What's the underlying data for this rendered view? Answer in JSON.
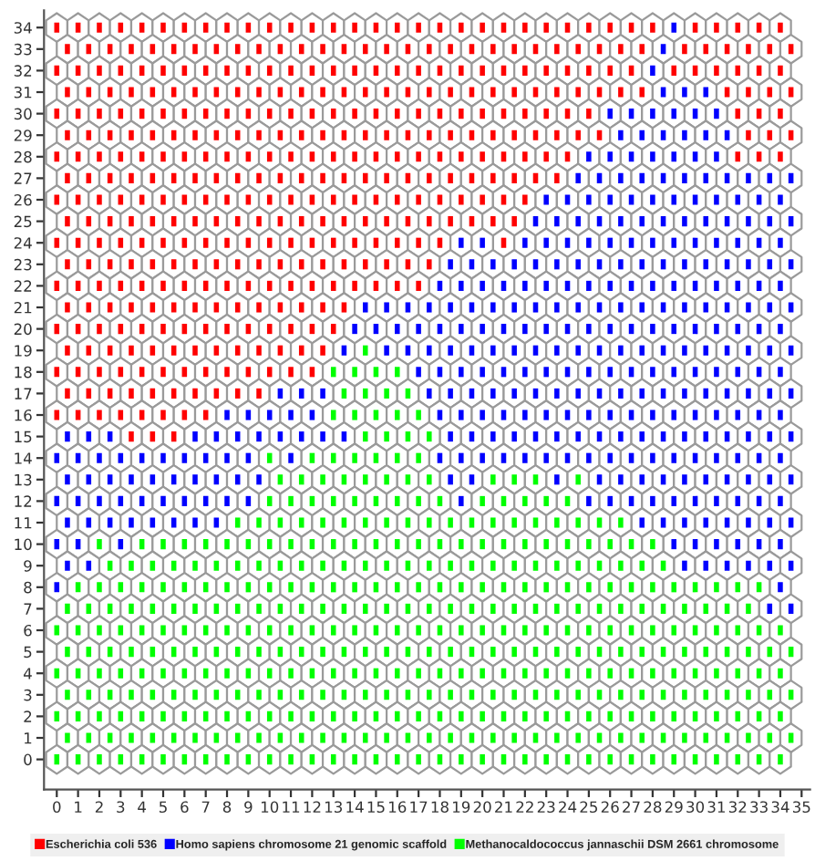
{
  "chart_data": {
    "type": "scatter",
    "marker": "square",
    "legend": "bottom",
    "xlim": [
      -0.6,
      35.4
    ],
    "ylim": [
      -1.4,
      34.8
    ],
    "xticks": [
      0,
      1,
      2,
      3,
      4,
      5,
      6,
      7,
      8,
      9,
      10,
      11,
      12,
      13,
      14,
      15,
      16,
      17,
      18,
      19,
      20,
      21,
      22,
      23,
      24,
      25,
      26,
      27,
      28,
      29,
      30,
      31,
      32,
      33,
      34,
      35
    ],
    "yticks": [
      0,
      1,
      2,
      3,
      4,
      5,
      6,
      7,
      8,
      9,
      10,
      11,
      12,
      13,
      14,
      15,
      16,
      17,
      18,
      19,
      20,
      21,
      22,
      23,
      24,
      25,
      26,
      27,
      28,
      29,
      30,
      31,
      32,
      33,
      34
    ],
    "series": [
      {
        "name": "Escherichia coli 536",
        "color": "#ff0000",
        "x": [
          0,
          1,
          2,
          3,
          4,
          5,
          6,
          7,
          8,
          9,
          10,
          11,
          12,
          13,
          14,
          15,
          16,
          17,
          18,
          19,
          20,
          21,
          22,
          23,
          24,
          25,
          26,
          27,
          28,
          30,
          31,
          32,
          33,
          34,
          0.5,
          1.5,
          2.5,
          3.5,
          4.5,
          5.5,
          6.5,
          7.5,
          8.5,
          9.5,
          10.5,
          11.5,
          12.5,
          13.5,
          14.5,
          15.5,
          16.5,
          17.5,
          18.5,
          19.5,
          20.5,
          21.5,
          22.5,
          23.5,
          24.5,
          25.5,
          26.5,
          27.5,
          29.5,
          30.5,
          31.5,
          32.5,
          33.5,
          34.5,
          0,
          1,
          2,
          3,
          4,
          5,
          6,
          7,
          8,
          9,
          10,
          11,
          12,
          13,
          14,
          15,
          16,
          17,
          18,
          19,
          20,
          21,
          22,
          23,
          24,
          25,
          26,
          27,
          29,
          30,
          31,
          32,
          33,
          34,
          0.5,
          1.5,
          2.5,
          3.5,
          4.5,
          5.5,
          6.5,
          7.5,
          8.5,
          9.5,
          10.5,
          11.5,
          12.5,
          13.5,
          14.5,
          15.5,
          16.5,
          17.5,
          18.5,
          19.5,
          20.5,
          21.5,
          22.5,
          23.5,
          24.5,
          25.5,
          26.5,
          27.5,
          31.5,
          32.5,
          33.5,
          34.5,
          0,
          1,
          2,
          3,
          4,
          5,
          6,
          7,
          8,
          9,
          10,
          11,
          12,
          13,
          14,
          15,
          16,
          17,
          18,
          19,
          20,
          21,
          22,
          23,
          24,
          25,
          32,
          33,
          34,
          0.5,
          1.5,
          2.5,
          3.5,
          4.5,
          5.5,
          6.5,
          7.5,
          8.5,
          9.5,
          10.5,
          11.5,
          12.5,
          13.5,
          14.5,
          15.5,
          16.5,
          17.5,
          18.5,
          19.5,
          20.5,
          21.5,
          22.5,
          23.5,
          24.5,
          25.5,
          32.5,
          33.5,
          34.5,
          0,
          1,
          2,
          3,
          4,
          5,
          6,
          7,
          8,
          9,
          10,
          11,
          12,
          13,
          14,
          15,
          16,
          17,
          18,
          19,
          20,
          21,
          22,
          23,
          24,
          32,
          33,
          34,
          0.5,
          1.5,
          2.5,
          3.5,
          4.5,
          5.5,
          6.5,
          7.5,
          8.5,
          9.5,
          10.5,
          11.5,
          12.5,
          13.5,
          14.5,
          15.5,
          16.5,
          17.5,
          18.5,
          19.5,
          20.5,
          21.5,
          22.5,
          23.5,
          0,
          1,
          2,
          3,
          4,
          5,
          6,
          7,
          8,
          9,
          10,
          11,
          12,
          13,
          14,
          15,
          16,
          17,
          18,
          19,
          20,
          21,
          22,
          0.5,
          1.5,
          2.5,
          3.5,
          4.5,
          5.5,
          6.5,
          7.5,
          8.5,
          9.5,
          10.5,
          11.5,
          12.5,
          13.5,
          14.5,
          15.5,
          16.5,
          17.5,
          18.5,
          19.5,
          20.5,
          21.5,
          0,
          1,
          2,
          3,
          4,
          5,
          6,
          7,
          8,
          9,
          10,
          11,
          12,
          13,
          14,
          15,
          16,
          17,
          18,
          21,
          0.5,
          1.5,
          2.5,
          3.5,
          4.5,
          5.5,
          6.5,
          7.5,
          8.5,
          9.5,
          10.5,
          11.5,
          12.5,
          13.5,
          14.5,
          15.5,
          16.5,
          17.5,
          0,
          1,
          2,
          3,
          4,
          5,
          6,
          7,
          8,
          9,
          10,
          11,
          12,
          13,
          14,
          15,
          16,
          17,
          0.5,
          1.5,
          2.5,
          3.5,
          4.5,
          5.5,
          6.5,
          7.5,
          8.5,
          9.5,
          10.5,
          11.5,
          12.5,
          13.5,
          0,
          1,
          2,
          3,
          4,
          5,
          6,
          7,
          8,
          9,
          10,
          11,
          12,
          13,
          0.5,
          1.5,
          2.5,
          3.5,
          4.5,
          5.5,
          6.5,
          7.5,
          8.5,
          9.5,
          10.5,
          11.5,
          12.5,
          0,
          1,
          2,
          3,
          4,
          5,
          6,
          7,
          8,
          9,
          10,
          11,
          12,
          0.5,
          1.5,
          2.5,
          3.5,
          4.5,
          5.5,
          6.5,
          7.5,
          8.5,
          9.5,
          0,
          1,
          2,
          3,
          4,
          5,
          6,
          7,
          3.5,
          4.5,
          5.5
        ],
        "values": [
          34,
          34,
          34,
          34,
          34,
          34,
          34,
          34,
          34,
          34,
          34,
          34,
          34,
          34,
          34,
          34,
          34,
          34,
          34,
          34,
          34,
          34,
          34,
          34,
          34,
          34,
          34,
          34,
          34,
          34,
          34,
          34,
          34,
          34,
          33,
          33,
          33,
          33,
          33,
          33,
          33,
          33,
          33,
          33,
          33,
          33,
          33,
          33,
          33,
          33,
          33,
          33,
          33,
          33,
          33,
          33,
          33,
          33,
          33,
          33,
          33,
          33,
          33,
          33,
          33,
          33,
          33,
          33,
          32,
          32,
          32,
          32,
          32,
          32,
          32,
          32,
          32,
          32,
          32,
          32,
          32,
          32,
          32,
          32,
          32,
          32,
          32,
          32,
          32,
          32,
          32,
          32,
          32,
          32,
          32,
          32,
          32,
          32,
          32,
          32,
          32,
          32,
          31,
          31,
          31,
          31,
          31,
          31,
          31,
          31,
          31,
          31,
          31,
          31,
          31,
          31,
          31,
          31,
          31,
          31,
          31,
          31,
          31,
          31,
          31,
          31,
          31,
          31,
          31,
          31,
          31,
          31,
          31,
          31,
          30,
          30,
          30,
          30,
          30,
          30,
          30,
          30,
          30,
          30,
          30,
          30,
          30,
          30,
          30,
          30,
          30,
          30,
          30,
          30,
          30,
          30,
          30,
          30,
          30,
          30,
          30,
          30,
          30,
          29,
          29,
          29,
          29,
          29,
          29,
          29,
          29,
          29,
          29,
          29,
          29,
          29,
          29,
          29,
          29,
          29,
          29,
          29,
          29,
          29,
          29,
          29,
          29,
          29,
          29,
          29,
          29,
          29,
          28,
          28,
          28,
          28,
          28,
          28,
          28,
          28,
          28,
          28,
          28,
          28,
          28,
          28,
          28,
          28,
          28,
          28,
          28,
          28,
          28,
          28,
          28,
          28,
          28,
          28,
          28,
          28,
          27,
          27,
          27,
          27,
          27,
          27,
          27,
          27,
          27,
          27,
          27,
          27,
          27,
          27,
          27,
          27,
          27,
          27,
          27,
          27,
          27,
          27,
          27,
          27,
          26,
          26,
          26,
          26,
          26,
          26,
          26,
          26,
          26,
          26,
          26,
          26,
          26,
          26,
          26,
          26,
          26,
          26,
          26,
          26,
          26,
          26,
          26,
          25,
          25,
          25,
          25,
          25,
          25,
          25,
          25,
          25,
          25,
          25,
          25,
          25,
          25,
          25,
          25,
          25,
          25,
          25,
          25,
          25,
          25,
          24,
          24,
          24,
          24,
          24,
          24,
          24,
          24,
          24,
          24,
          24,
          24,
          24,
          24,
          24,
          24,
          24,
          24,
          24,
          24,
          23,
          23,
          23,
          23,
          23,
          23,
          23,
          23,
          23,
          23,
          23,
          23,
          23,
          23,
          23,
          23,
          23,
          23,
          22,
          22,
          22,
          22,
          22,
          22,
          22,
          22,
          22,
          22,
          22,
          22,
          22,
          22,
          22,
          22,
          22,
          22,
          21,
          21,
          21,
          21,
          21,
          21,
          21,
          21,
          21,
          21,
          21,
          21,
          21,
          21,
          20,
          20,
          20,
          20,
          20,
          20,
          20,
          20,
          20,
          20,
          20,
          20,
          20,
          20,
          19,
          19,
          19,
          19,
          19,
          19,
          19,
          19,
          19,
          19,
          19,
          19,
          19,
          18,
          18,
          18,
          18,
          18,
          18,
          18,
          18,
          18,
          18,
          18,
          18,
          18,
          17,
          17,
          17,
          17,
          17,
          17,
          17,
          17,
          17,
          17,
          16,
          16,
          16,
          16,
          16,
          16,
          16,
          16,
          15,
          15,
          15
        ]
      },
      {
        "name": "Homo sapiens chromosome 21 genomic scaffold",
        "color": "#0000ff",
        "x": [
          29,
          28.5,
          28,
          28.5,
          29.5,
          30.5,
          26,
          27,
          28,
          29,
          30,
          31,
          26.5,
          27.5,
          28.5,
          29.5,
          30.5,
          31.5,
          25,
          26,
          27,
          28,
          29,
          30,
          31,
          24.5,
          25.5,
          26.5,
          27.5,
          28.5,
          29.5,
          30.5,
          31.5,
          32.5,
          33.5,
          34.5,
          23,
          24,
          25,
          26,
          27,
          28,
          29,
          30,
          31,
          32,
          33,
          34,
          22.5,
          23.5,
          24.5,
          25.5,
          26.5,
          27.5,
          28.5,
          29.5,
          30.5,
          31.5,
          32.5,
          33.5,
          34.5,
          19,
          20,
          22,
          23,
          24,
          25,
          26,
          27,
          28,
          29,
          30,
          31,
          32,
          33,
          34,
          18.5,
          19.5,
          20.5,
          21.5,
          22.5,
          23.5,
          24.5,
          25.5,
          26.5,
          27.5,
          28.5,
          29.5,
          30.5,
          31.5,
          32.5,
          33.5,
          34.5,
          18,
          19,
          20,
          21,
          22,
          23,
          24,
          25,
          26,
          27,
          28,
          29,
          30,
          31,
          32,
          33,
          34,
          14.5,
          15.5,
          16.5,
          17.5,
          18.5,
          19.5,
          20.5,
          21.5,
          22.5,
          23.5,
          24.5,
          25.5,
          26.5,
          27.5,
          28.5,
          29.5,
          30.5,
          31.5,
          32.5,
          33.5,
          34.5,
          14,
          15,
          16,
          17,
          18,
          19,
          20,
          21,
          22,
          23,
          24,
          25,
          26,
          27,
          28,
          29,
          30,
          31,
          32,
          33,
          34,
          13.5,
          15.5,
          16.5,
          17.5,
          18.5,
          19.5,
          20.5,
          21.5,
          22.5,
          23.5,
          24.5,
          25.5,
          26.5,
          27.5,
          28.5,
          29.5,
          30.5,
          31.5,
          32.5,
          33.5,
          34.5,
          17,
          18,
          19,
          20,
          21,
          22,
          23,
          24,
          25,
          26,
          27,
          28,
          29,
          30,
          31,
          32,
          33,
          34,
          10.5,
          11.5,
          12.5,
          17.5,
          18.5,
          19.5,
          20.5,
          21.5,
          22.5,
          23.5,
          24.5,
          25.5,
          26.5,
          27.5,
          28.5,
          29.5,
          30.5,
          31.5,
          32.5,
          33.5,
          34.5,
          8,
          9,
          10,
          11,
          12,
          18,
          19,
          20,
          21,
          22,
          23,
          24,
          25,
          26,
          27,
          28,
          29,
          30,
          31,
          32,
          33,
          34,
          0.5,
          1.5,
          2.5,
          6.5,
          7.5,
          8.5,
          9.5,
          10.5,
          11.5,
          12.5,
          13.5,
          18.5,
          19.5,
          20.5,
          21.5,
          22.5,
          23.5,
          24.5,
          25.5,
          26.5,
          27.5,
          28.5,
          29.5,
          30.5,
          31.5,
          32.5,
          33.5,
          34.5,
          0,
          1,
          2,
          3,
          4,
          5,
          6,
          7,
          8,
          9,
          11,
          18,
          19,
          20,
          21,
          22,
          23,
          24,
          25,
          26,
          27,
          28,
          29,
          30,
          31,
          32,
          33,
          34,
          0.5,
          1.5,
          2.5,
          3.5,
          4.5,
          5.5,
          6.5,
          7.5,
          8.5,
          9.5,
          18.5,
          19.5,
          23.5,
          25.5,
          26.5,
          27.5,
          28.5,
          29.5,
          30.5,
          31.5,
          32.5,
          33.5,
          34.5,
          0,
          1,
          2,
          3,
          4,
          5,
          6,
          7,
          8,
          9,
          19,
          25,
          26,
          27,
          28,
          29,
          30,
          31,
          32,
          33,
          34,
          0.5,
          1.5,
          2.5,
          3.5,
          4.5,
          5.5,
          6.5,
          7.5,
          27.5,
          28.5,
          29.5,
          30.5,
          31.5,
          32.5,
          33.5,
          34.5,
          0,
          1,
          3,
          29,
          30,
          31,
          32,
          33,
          34,
          0.5,
          1.5,
          29.5,
          30.5,
          31.5,
          32.5,
          33.5,
          34.5,
          0,
          34,
          33.5,
          34.5
        ],
        "values": [
          34,
          33,
          32,
          31,
          31,
          31,
          30,
          30,
          30,
          30,
          30,
          30,
          29,
          29,
          29,
          29,
          29,
          29,
          28,
          28,
          28,
          28,
          28,
          28,
          28,
          27,
          27,
          27,
          27,
          27,
          27,
          27,
          27,
          27,
          27,
          27,
          26,
          26,
          26,
          26,
          26,
          26,
          26,
          26,
          26,
          26,
          26,
          26,
          25,
          25,
          25,
          25,
          25,
          25,
          25,
          25,
          25,
          25,
          25,
          25,
          25,
          24,
          24,
          24,
          24,
          24,
          24,
          24,
          24,
          24,
          24,
          24,
          24,
          24,
          24,
          24,
          23,
          23,
          23,
          23,
          23,
          23,
          23,
          23,
          23,
          23,
          23,
          23,
          23,
          23,
          23,
          23,
          23,
          22,
          22,
          22,
          22,
          22,
          22,
          22,
          22,
          22,
          22,
          22,
          22,
          22,
          22,
          22,
          22,
          22,
          21,
          21,
          21,
          21,
          21,
          21,
          21,
          21,
          21,
          21,
          21,
          21,
          21,
          21,
          21,
          21,
          21,
          21,
          21,
          21,
          21,
          20,
          20,
          20,
          20,
          20,
          20,
          20,
          20,
          20,
          20,
          20,
          20,
          20,
          20,
          20,
          20,
          20,
          20,
          20,
          20,
          20,
          19,
          19,
          19,
          19,
          19,
          19,
          19,
          19,
          19,
          19,
          19,
          19,
          19,
          19,
          19,
          19,
          19,
          19,
          19,
          19,
          19,
          18,
          18,
          18,
          18,
          18,
          18,
          18,
          18,
          18,
          18,
          18,
          18,
          18,
          18,
          18,
          18,
          18,
          18,
          17,
          17,
          17,
          17,
          17,
          17,
          17,
          17,
          17,
          17,
          17,
          17,
          17,
          17,
          17,
          17,
          17,
          17,
          17,
          17,
          17,
          16,
          16,
          16,
          16,
          16,
          16,
          16,
          16,
          16,
          16,
          16,
          16,
          16,
          16,
          16,
          16,
          16,
          16,
          16,
          16,
          16,
          16,
          15,
          15,
          15,
          15,
          15,
          15,
          15,
          15,
          15,
          15,
          15,
          15,
          15,
          15,
          15,
          15,
          15,
          15,
          15,
          15,
          15,
          15,
          15,
          15,
          15,
          15,
          15,
          15,
          14,
          14,
          14,
          14,
          14,
          14,
          14,
          14,
          14,
          14,
          14,
          14,
          14,
          14,
          14,
          14,
          14,
          14,
          14,
          14,
          14,
          14,
          14,
          14,
          14,
          14,
          14,
          14,
          13,
          13,
          13,
          13,
          13,
          13,
          13,
          13,
          13,
          13,
          13,
          13,
          13,
          13,
          13,
          13,
          13,
          13,
          13,
          13,
          13,
          13,
          13,
          12,
          12,
          12,
          12,
          12,
          12,
          12,
          12,
          12,
          12,
          12,
          12,
          12,
          12,
          12,
          12,
          12,
          12,
          12,
          12,
          12,
          11,
          11,
          11,
          11,
          11,
          11,
          11,
          11,
          11,
          11,
          11,
          11,
          11,
          11,
          11,
          11,
          10,
          10,
          10,
          10,
          10,
          10,
          10,
          10,
          10,
          9,
          9,
          9,
          9,
          9,
          9,
          9,
          9,
          8,
          8,
          7,
          7
        ]
      },
      {
        "name": "Methanocaldococcus jannaschii DSM 2661 chromosome",
        "color": "#00ff00",
        "x": [
          14.5,
          13,
          14,
          15,
          16,
          13.5,
          14.5,
          15.5,
          16.5,
          13,
          14,
          15,
          16,
          17,
          14.5,
          15.5,
          16.5,
          17.5,
          10,
          12,
          13,
          14,
          15,
          16,
          17,
          10.5,
          11.5,
          12.5,
          13.5,
          14.5,
          15.5,
          16.5,
          17.5,
          20.5,
          21.5,
          22.5,
          24.5,
          10,
          11,
          12,
          13,
          14,
          15,
          16,
          17,
          18,
          20,
          21,
          22,
          23,
          24,
          8.5,
          9.5,
          10.5,
          11.5,
          12.5,
          13.5,
          14.5,
          15.5,
          16.5,
          17.5,
          18.5,
          19.5,
          20.5,
          21.5,
          22.5,
          23.5,
          24.5,
          25.5,
          26.5,
          2,
          4,
          5,
          6,
          7,
          8,
          9,
          10,
          11,
          12,
          13,
          14,
          15,
          16,
          17,
          18,
          19,
          20,
          21,
          22,
          23,
          24,
          25,
          26,
          27,
          28,
          2.5,
          3.5,
          4.5,
          5.5,
          6.5,
          7.5,
          8.5,
          9.5,
          10.5,
          11.5,
          12.5,
          13.5,
          14.5,
          15.5,
          16.5,
          17.5,
          18.5,
          19.5,
          20.5,
          21.5,
          22.5,
          23.5,
          24.5,
          25.5,
          26.5,
          27.5,
          28.5,
          1,
          2,
          3,
          4,
          5,
          6,
          7,
          8,
          9,
          10,
          11,
          12,
          13,
          14,
          15,
          16,
          17,
          18,
          19,
          20,
          21,
          22,
          23,
          24,
          25,
          26,
          27,
          28,
          29,
          30,
          31,
          32,
          33,
          0.5,
          1.5,
          2.5,
          3.5,
          4.5,
          5.5,
          6.5,
          7.5,
          8.5,
          9.5,
          10.5,
          11.5,
          12.5,
          13.5,
          14.5,
          15.5,
          16.5,
          17.5,
          18.5,
          19.5,
          20.5,
          21.5,
          22.5,
          23.5,
          24.5,
          25.5,
          26.5,
          27.5,
          28.5,
          29.5,
          30.5,
          31.5,
          32.5,
          0,
          1,
          2,
          3,
          4,
          5,
          6,
          7,
          8,
          9,
          10,
          11,
          12,
          13,
          14,
          15,
          16,
          17,
          18,
          19,
          20,
          21,
          22,
          23,
          24,
          25,
          26,
          27,
          28,
          29,
          30,
          31,
          32,
          33,
          34,
          0.5,
          1.5,
          2.5,
          3.5,
          4.5,
          5.5,
          6.5,
          7.5,
          8.5,
          9.5,
          10.5,
          11.5,
          12.5,
          13.5,
          14.5,
          15.5,
          16.5,
          17.5,
          18.5,
          19.5,
          20.5,
          21.5,
          22.5,
          23.5,
          24.5,
          25.5,
          26.5,
          27.5,
          28.5,
          29.5,
          30.5,
          31.5,
          32.5,
          33.5,
          34.5,
          0,
          1,
          2,
          3,
          4,
          5,
          6,
          7,
          8,
          9,
          10,
          11,
          12,
          13,
          14,
          15,
          16,
          17,
          18,
          19,
          20,
          21,
          22,
          23,
          24,
          25,
          26,
          27,
          28,
          29,
          30,
          31,
          32,
          33,
          34,
          0.5,
          1.5,
          2.5,
          3.5,
          4.5,
          5.5,
          6.5,
          7.5,
          8.5,
          9.5,
          10.5,
          11.5,
          12.5,
          13.5,
          14.5,
          15.5,
          16.5,
          17.5,
          18.5,
          19.5,
          20.5,
          21.5,
          22.5,
          23.5,
          24.5,
          25.5,
          26.5,
          27.5,
          28.5,
          29.5,
          30.5,
          31.5,
          32.5,
          33.5,
          34.5,
          0,
          1,
          2,
          3,
          4,
          5,
          6,
          7,
          8,
          9,
          10,
          11,
          12,
          13,
          14,
          15,
          16,
          17,
          18,
          19,
          20,
          21,
          22,
          23,
          24,
          25,
          26,
          27,
          28,
          29,
          30,
          31,
          32,
          33,
          34,
          0.5,
          1.5,
          2.5,
          3.5,
          4.5,
          5.5,
          6.5,
          7.5,
          8.5,
          9.5,
          10.5,
          11.5,
          12.5,
          13.5,
          14.5,
          15.5,
          16.5,
          17.5,
          18.5,
          19.5,
          20.5,
          21.5,
          22.5,
          23.5,
          24.5,
          25.5,
          26.5,
          27.5,
          28.5,
          29.5,
          30.5,
          31.5,
          32.5,
          33.5,
          34.5,
          0,
          1,
          2,
          3,
          4,
          5,
          6,
          7,
          8,
          9,
          10,
          11,
          12,
          13,
          14,
          15,
          16,
          17,
          18,
          19,
          20,
          21,
          22,
          23,
          24,
          25,
          26,
          27,
          28,
          29,
          30,
          31,
          32,
          33,
          34
        ],
        "values": [
          19,
          18,
          18,
          18,
          18,
          17,
          17,
          17,
          17,
          16,
          16,
          16,
          16,
          16,
          15,
          15,
          15,
          15,
          14,
          14,
          14,
          14,
          14,
          14,
          14,
          13,
          13,
          13,
          13,
          13,
          13,
          13,
          13,
          13,
          13,
          13,
          13,
          12,
          12,
          12,
          12,
          12,
          12,
          12,
          12,
          12,
          12,
          12,
          12,
          12,
          12,
          11,
          11,
          11,
          11,
          11,
          11,
          11,
          11,
          11,
          11,
          11,
          11,
          11,
          11,
          11,
          11,
          11,
          11,
          11,
          10,
          10,
          10,
          10,
          10,
          10,
          10,
          10,
          10,
          10,
          10,
          10,
          10,
          10,
          10,
          10,
          10,
          10,
          10,
          10,
          10,
          10,
          10,
          10,
          10,
          10,
          9,
          9,
          9,
          9,
          9,
          9,
          9,
          9,
          9,
          9,
          9,
          9,
          9,
          9,
          9,
          9,
          9,
          9,
          9,
          9,
          9,
          9,
          9,
          9,
          9,
          9,
          9,
          8,
          8,
          8,
          8,
          8,
          8,
          8,
          8,
          8,
          8,
          8,
          8,
          8,
          8,
          8,
          8,
          8,
          8,
          8,
          8,
          8,
          8,
          8,
          8,
          8,
          8,
          8,
          8,
          8,
          8,
          8,
          8,
          8,
          7,
          7,
          7,
          7,
          7,
          7,
          7,
          7,
          7,
          7,
          7,
          7,
          7,
          7,
          7,
          7,
          7,
          7,
          7,
          7,
          7,
          7,
          7,
          7,
          7,
          7,
          7,
          7,
          7,
          7,
          7,
          7,
          7,
          6,
          6,
          6,
          6,
          6,
          6,
          6,
          6,
          6,
          6,
          6,
          6,
          6,
          6,
          6,
          6,
          6,
          6,
          6,
          6,
          6,
          6,
          6,
          6,
          6,
          6,
          6,
          6,
          6,
          6,
          6,
          6,
          6,
          6,
          6,
          5,
          5,
          5,
          5,
          5,
          5,
          5,
          5,
          5,
          5,
          5,
          5,
          5,
          5,
          5,
          5,
          5,
          5,
          5,
          5,
          5,
          5,
          5,
          5,
          5,
          5,
          5,
          5,
          5,
          5,
          5,
          5,
          5,
          5,
          5,
          4,
          4,
          4,
          4,
          4,
          4,
          4,
          4,
          4,
          4,
          4,
          4,
          4,
          4,
          4,
          4,
          4,
          4,
          4,
          4,
          4,
          4,
          4,
          4,
          4,
          4,
          4,
          4,
          4,
          4,
          4,
          4,
          4,
          4,
          4,
          3,
          3,
          3,
          3,
          3,
          3,
          3,
          3,
          3,
          3,
          3,
          3,
          3,
          3,
          3,
          3,
          3,
          3,
          3,
          3,
          3,
          3,
          3,
          3,
          3,
          3,
          3,
          3,
          3,
          3,
          3,
          3,
          3,
          3,
          3,
          2,
          2,
          2,
          2,
          2,
          2,
          2,
          2,
          2,
          2,
          2,
          2,
          2,
          2,
          2,
          2,
          2,
          2,
          2,
          2,
          2,
          2,
          2,
          2,
          2,
          2,
          2,
          2,
          2,
          2,
          2,
          2,
          2,
          2,
          2,
          1,
          1,
          1,
          1,
          1,
          1,
          1,
          1,
          1,
          1,
          1,
          1,
          1,
          1,
          1,
          1,
          1,
          1,
          1,
          1,
          1,
          1,
          1,
          1,
          1,
          1,
          1,
          1,
          1,
          1,
          1,
          1,
          1,
          1,
          1,
          0,
          0,
          0,
          0,
          0,
          0,
          0,
          0,
          0,
          0,
          0,
          0,
          0,
          0,
          0,
          0,
          0,
          0,
          0,
          0,
          0,
          0,
          0,
          0,
          0,
          0,
          0,
          0,
          0,
          0,
          0,
          0,
          0,
          0,
          0
        ]
      }
    ]
  }
}
